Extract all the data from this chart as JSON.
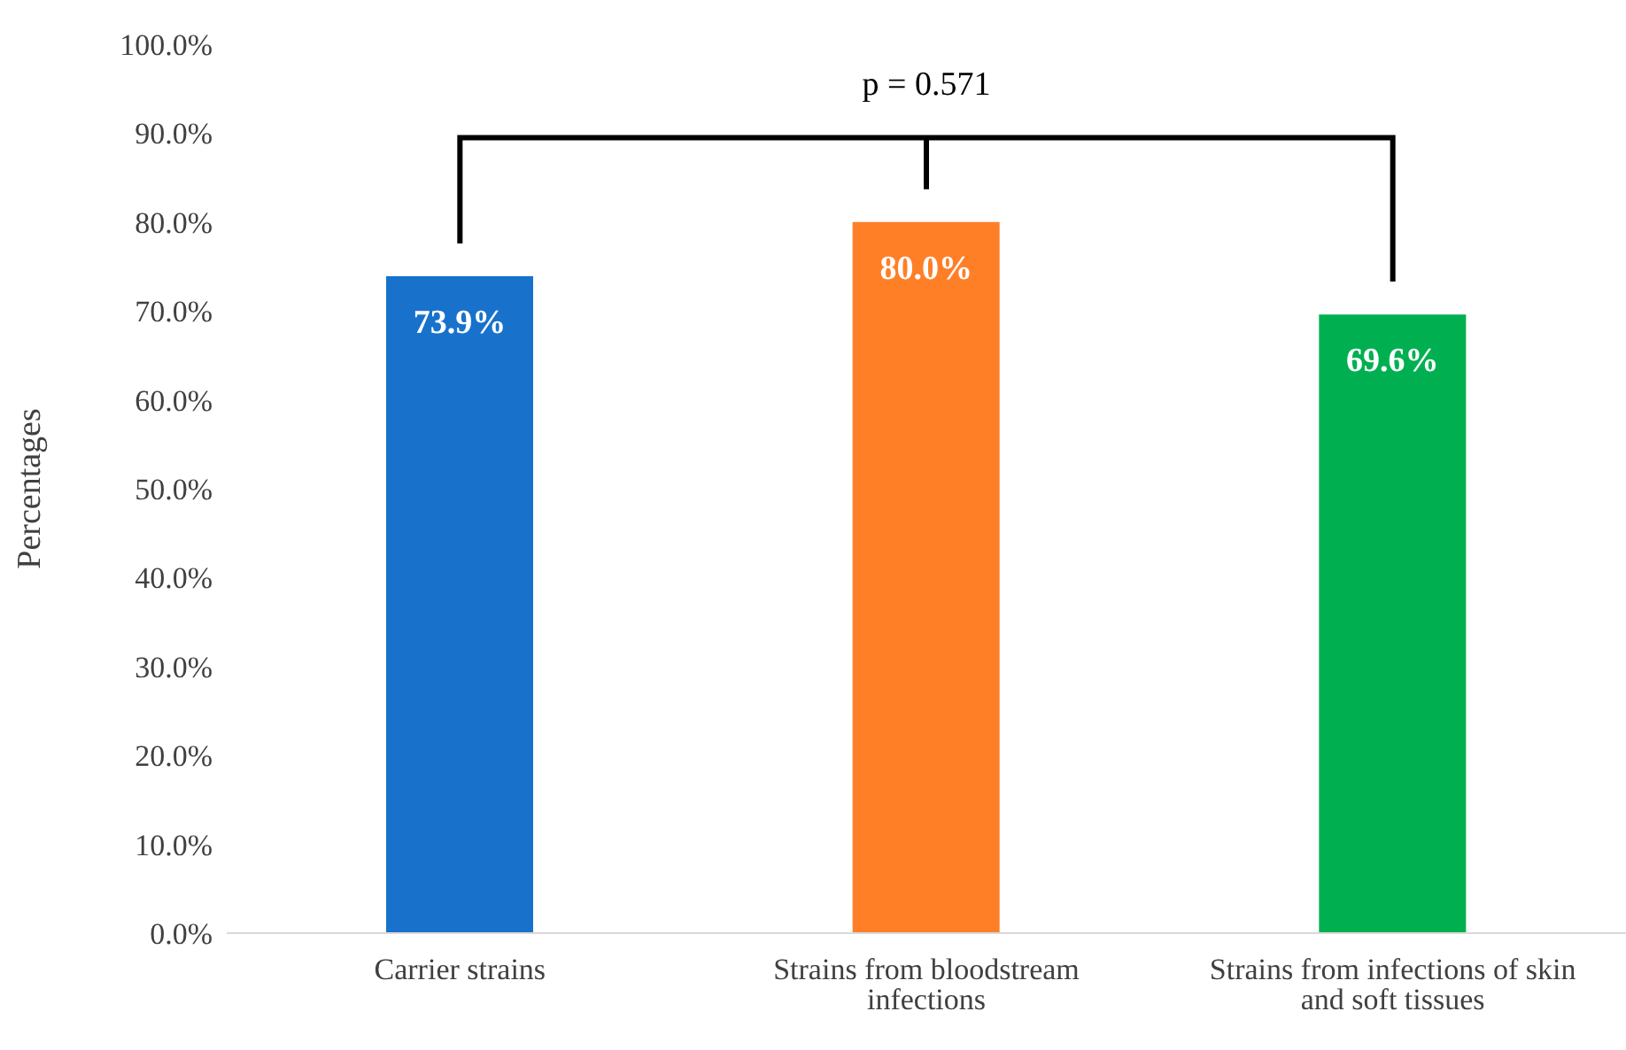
{
  "chart_data": {
    "type": "bar",
    "ylabel": "Percentages",
    "categories": [
      "Carrier strains",
      "Strains from bloodstream infections",
      "Strains from infections of skin and soft tissues"
    ],
    "values": [
      73.9,
      80.0,
      69.6
    ],
    "colors": [
      "#1872cc",
      "#ff7f27",
      "#00b050"
    ],
    "value_labels": [
      "73.9%",
      "80.0%",
      "69.6%"
    ],
    "ylim": [
      0,
      100
    ],
    "yticks": [
      {
        "value": 0,
        "label": "0.0%"
      },
      {
        "value": 10,
        "label": "10.0%"
      },
      {
        "value": 20,
        "label": "20.0%"
      },
      {
        "value": 30,
        "label": "30.0%"
      },
      {
        "value": 40,
        "label": "40.0%"
      },
      {
        "value": 50,
        "label": "50.0%"
      },
      {
        "value": 60,
        "label": "60.0%"
      },
      {
        "value": 70,
        "label": "70.0%"
      },
      {
        "value": 80,
        "label": "80.0%"
      },
      {
        "value": 90,
        "label": "90.0%"
      },
      {
        "value": 100,
        "label": "100.0%"
      }
    ],
    "annotations": [
      "p = 0.571"
    ],
    "grid": false,
    "legend": false
  }
}
